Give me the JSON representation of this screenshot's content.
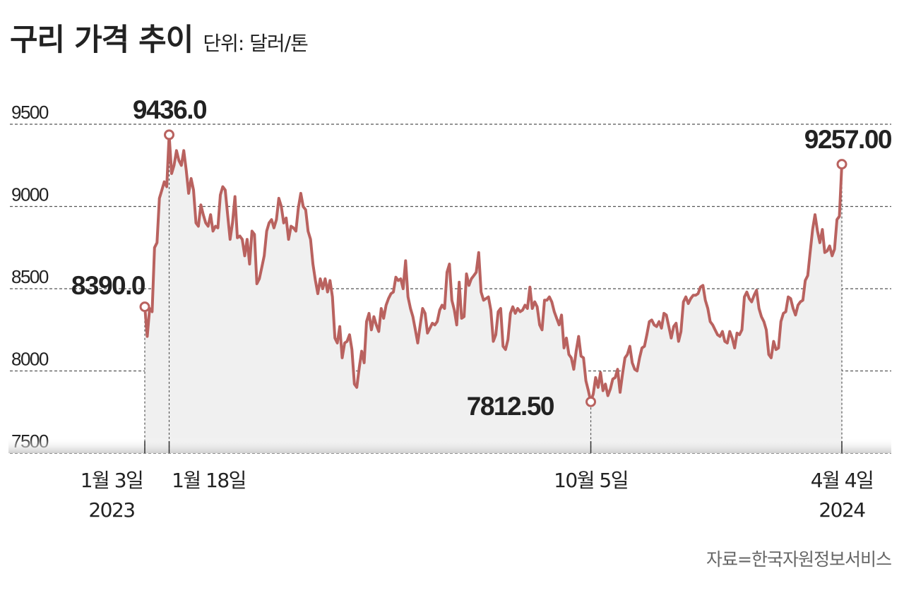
{
  "header": {
    "title": "구리 가격 추이",
    "unit": "단위: 달러/톤"
  },
  "source": "자료=한국자원정보서비스",
  "colors": {
    "line": "#b9625f",
    "fill": "#f0f0f0",
    "grid": "#555555",
    "text": "#222222"
  },
  "chart_data": {
    "type": "area",
    "title": "구리 가격 추이",
    "subtitle": "단위: 달러/톤",
    "xlabel": "",
    "ylabel": "달러/톤",
    "ylim": [
      7500,
      9500
    ],
    "yticks": [
      7500,
      8000,
      8500,
      9000,
      9500
    ],
    "ytick_labels": [
      "7500",
      "8000",
      "8500",
      "9000",
      "9500"
    ],
    "grid": "horizontal dashed",
    "legend": "none",
    "x_range": [
      "2023-01-03",
      "2024-04-04"
    ],
    "xtick_labels": [
      {
        "label": "1월 3일",
        "year": "2023"
      },
      {
        "label": "1월 18일",
        "year": ""
      },
      {
        "label": "10월 5일",
        "year": ""
      },
      {
        "label": "4월 4일",
        "year": "2024"
      }
    ],
    "annotations": [
      {
        "date": "2023-01-03",
        "label": "8390.0",
        "value": 8390.0
      },
      {
        "date": "2023-01-18",
        "label": "9436.0",
        "value": 9436.0
      },
      {
        "date": "2023-10-05",
        "label": "7812.50",
        "value": 7812.5
      },
      {
        "date": "2024-04-04",
        "label": "9257.00",
        "value": 9257.0
      }
    ],
    "series": [
      {
        "name": "구리 가격",
        "values": [
          8390,
          8210,
          8380,
          8360,
          8750,
          8780,
          9050,
          9100,
          9150,
          9120,
          9436,
          9200,
          9250,
          9340,
          9280,
          9250,
          9340,
          9220,
          9080,
          9170,
          9100,
          8900,
          8880,
          9010,
          8950,
          8900,
          8880,
          8950,
          8850,
          8880,
          8870,
          9070,
          9120,
          9100,
          8950,
          8800,
          8900,
          9060,
          8810,
          8820,
          8800,
          8700,
          8800,
          8650,
          8850,
          8830,
          8530,
          8560,
          8630,
          8700,
          8850,
          8900,
          8920,
          8870,
          8920,
          9050,
          9000,
          8900,
          8930,
          8800,
          8880,
          8870,
          8850,
          8990,
          9080,
          9000,
          8980,
          8850,
          8800,
          8650,
          8550,
          8470,
          8560,
          8500,
          8560,
          8480,
          8550,
          8450,
          8200,
          8170,
          8270,
          8080,
          8170,
          8180,
          8220,
          8130,
          7920,
          7900,
          8020,
          8120,
          8050,
          8300,
          8350,
          8250,
          8330,
          8280,
          8240,
          8380,
          8320,
          8400,
          8440,
          8470,
          8480,
          8570,
          8550,
          8560,
          8500,
          8670,
          8450,
          8380,
          8330,
          8250,
          8170,
          8280,
          8380,
          8350,
          8230,
          8260,
          8290,
          8280,
          8300,
          8370,
          8400,
          8380,
          8600,
          8650,
          8430,
          8370,
          8280,
          8540,
          8320,
          8330,
          8590,
          8520,
          8560,
          8580,
          8600,
          8720,
          8480,
          8430,
          8440,
          8450,
          8370,
          8180,
          8220,
          8360,
          8380,
          8150,
          8130,
          8190,
          8350,
          8390,
          8350,
          8380,
          8360,
          8370,
          8400,
          8380,
          8510,
          8380,
          8420,
          8390,
          8280,
          8250,
          8430,
          8430,
          8450,
          8420,
          8360,
          8320,
          8280,
          8340,
          8140,
          8200,
          8100,
          8080,
          8010,
          8120,
          8210,
          8090,
          8080,
          7940,
          7880,
          7812.5,
          7860,
          7960,
          7900,
          7990,
          7880,
          7920,
          7850,
          7890,
          7950,
          7960,
          8010,
          7870,
          7980,
          8080,
          8100,
          8150,
          8050,
          8010,
          8000,
          8080,
          8140,
          8150,
          8220,
          8300,
          8310,
          8280,
          8270,
          8300,
          8260,
          8350,
          8340,
          8270,
          8200,
          8270,
          8290,
          8180,
          8240,
          8420,
          8450,
          8410,
          8440,
          8460,
          8460,
          8470,
          8510,
          8520,
          8430,
          8380,
          8300,
          8280,
          8250,
          8220,
          8210,
          8240,
          8180,
          8170,
          8240,
          8200,
          8140,
          8230,
          8220,
          8250,
          8450,
          8480,
          8440,
          8420,
          8460,
          8490,
          8380,
          8330,
          8300,
          8250,
          8100,
          8080,
          8180,
          8130,
          8140,
          8300,
          8350,
          8360,
          8450,
          8440,
          8380,
          8340,
          8400,
          8420,
          8430,
          8550,
          8580,
          8720,
          8860,
          8950,
          8850,
          8780,
          8860,
          8720,
          8730,
          8760,
          8700,
          8740,
          8920,
          8940,
          9257
        ]
      }
    ]
  }
}
